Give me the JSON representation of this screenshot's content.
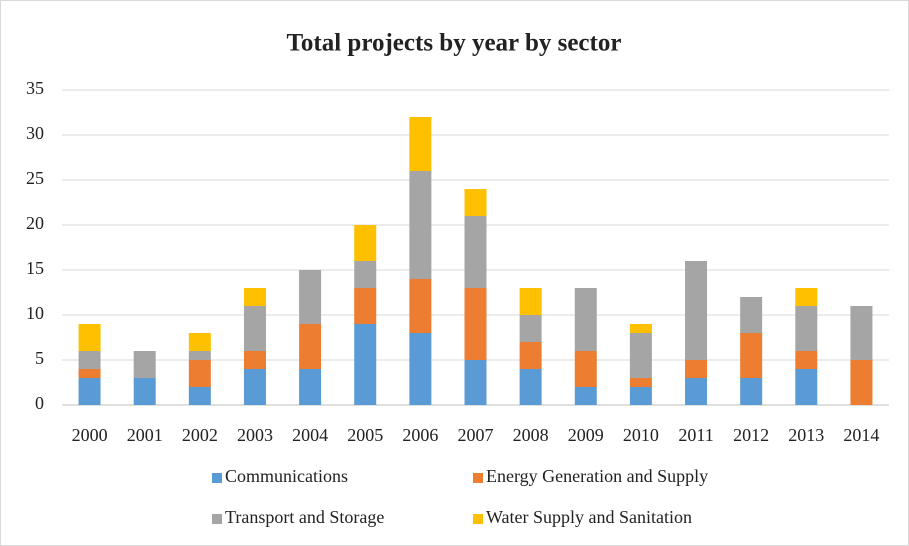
{
  "chart_data": {
    "type": "stacked_bar",
    "title": "Total projects by year by sector",
    "categories": [
      "2000",
      "2001",
      "2002",
      "2003",
      "2004",
      "2005",
      "2006",
      "2007",
      "2008",
      "2009",
      "2010",
      "2011",
      "2012",
      "2013",
      "2014"
    ],
    "series": [
      {
        "name": "Communications",
        "color": "#5b9bd5",
        "values": [
          3,
          3,
          2,
          4,
          4,
          9,
          8,
          5,
          4,
          2,
          2,
          3,
          3,
          4,
          0
        ]
      },
      {
        "name": "Energy Generation and Supply",
        "color": "#ed7d31",
        "values": [
          1,
          0,
          3,
          2,
          5,
          4,
          6,
          8,
          3,
          4,
          1,
          2,
          5,
          2,
          5
        ]
      },
      {
        "name": "Transport and Storage",
        "color": "#a5a5a5",
        "values": [
          2,
          3,
          1,
          5,
          6,
          3,
          12,
          8,
          3,
          7,
          5,
          11,
          4,
          5,
          6
        ]
      },
      {
        "name": "Water Supply and Sanitation",
        "color": "#ffc000",
        "values": [
          3,
          0,
          2,
          2,
          0,
          4,
          6,
          3,
          3,
          0,
          1,
          0,
          0,
          2,
          0
        ]
      }
    ],
    "ylim": [
      0,
      35
    ],
    "yticks": [
      0,
      5,
      10,
      15,
      20,
      25,
      30,
      35
    ],
    "grid": true
  }
}
